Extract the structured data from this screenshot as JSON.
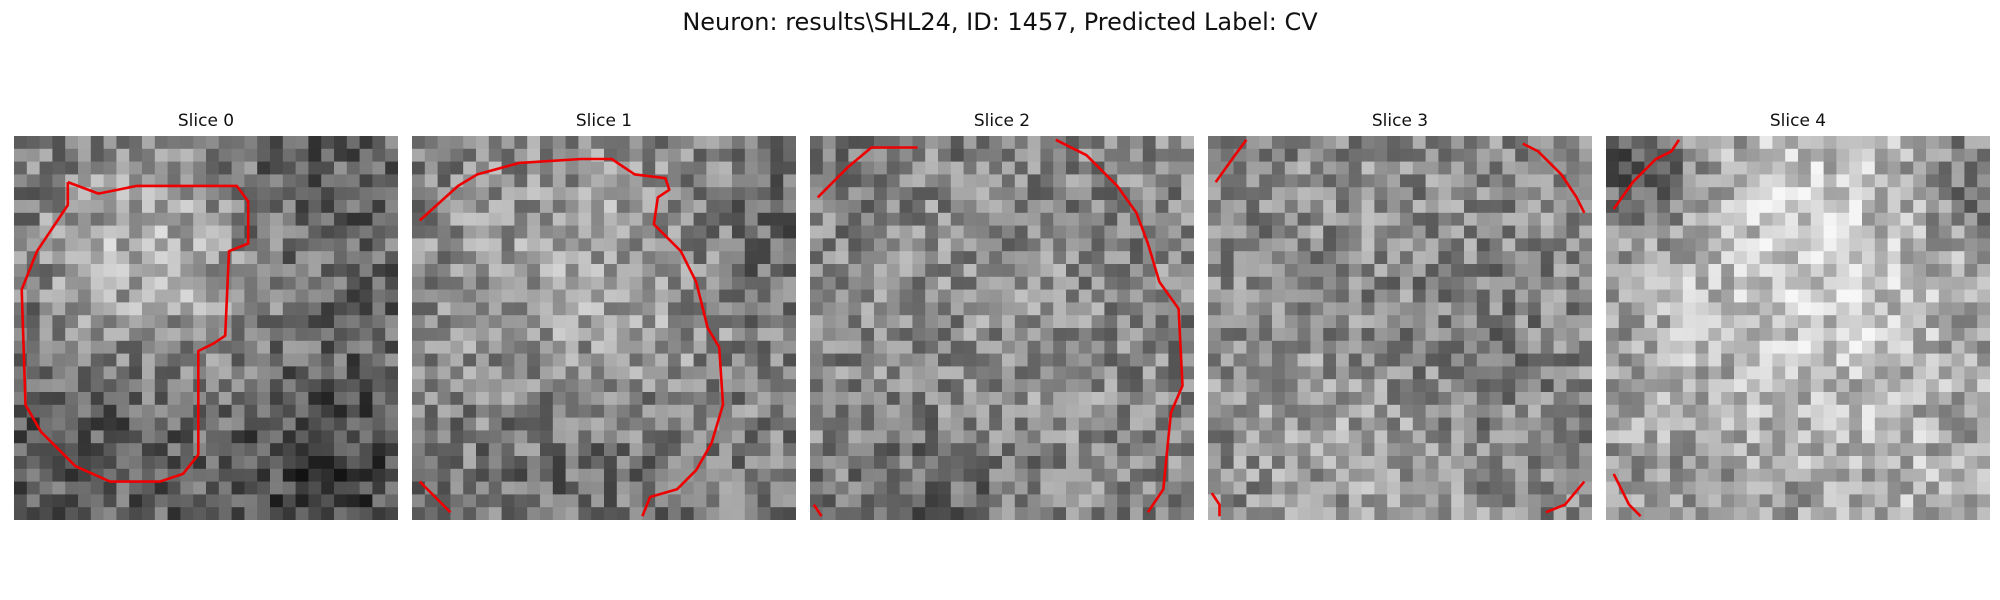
{
  "figure": {
    "title": "Neuron: results\\SHL24, ID: 1457, Predicted Label: CV",
    "contour_color": "#ee0000"
  },
  "panels": [
    {
      "title": "Slice 0",
      "seed": 11,
      "base": 0.42,
      "blobs": [
        [
          10,
          9,
          7,
          0.28
        ],
        [
          5,
          22,
          5,
          -0.12
        ],
        [
          24,
          26,
          6,
          -0.15
        ],
        [
          21,
          4,
          4,
          -0.1
        ]
      ],
      "contours": [
        [
          [
            0.14,
            0.12
          ],
          [
            0.22,
            0.15
          ],
          [
            0.32,
            0.13
          ],
          [
            0.58,
            0.13
          ],
          [
            0.61,
            0.17
          ],
          [
            0.61,
            0.28
          ],
          [
            0.56,
            0.3
          ],
          [
            0.55,
            0.52
          ],
          [
            0.52,
            0.54
          ],
          [
            0.48,
            0.56
          ],
          [
            0.48,
            0.83
          ],
          [
            0.44,
            0.88
          ],
          [
            0.38,
            0.9
          ],
          [
            0.25,
            0.9
          ],
          [
            0.16,
            0.86
          ],
          [
            0.07,
            0.77
          ],
          [
            0.03,
            0.7
          ],
          [
            0.02,
            0.4
          ],
          [
            0.06,
            0.3
          ],
          [
            0.14,
            0.18
          ],
          [
            0.14,
            0.12
          ]
        ]
      ]
    },
    {
      "title": "Slice 1",
      "seed": 23,
      "base": 0.48,
      "blobs": [
        [
          13,
          12,
          9,
          0.18
        ],
        [
          12,
          24,
          6,
          -0.1
        ],
        [
          27,
          8,
          4,
          -0.1
        ]
      ],
      "contours": [
        [
          [
            0.02,
            0.22
          ],
          [
            0.12,
            0.13
          ],
          [
            0.17,
            0.1
          ],
          [
            0.28,
            0.07
          ],
          [
            0.44,
            0.06
          ],
          [
            0.52,
            0.06
          ],
          [
            0.58,
            0.1
          ],
          [
            0.66,
            0.11
          ],
          [
            0.67,
            0.14
          ],
          [
            0.64,
            0.16
          ],
          [
            0.63,
            0.23
          ],
          [
            0.7,
            0.3
          ],
          [
            0.74,
            0.38
          ],
          [
            0.77,
            0.5
          ],
          [
            0.8,
            0.55
          ],
          [
            0.81,
            0.7
          ],
          [
            0.78,
            0.8
          ],
          [
            0.74,
            0.87
          ],
          [
            0.69,
            0.92
          ],
          [
            0.62,
            0.94
          ],
          [
            0.6,
            0.99
          ]
        ],
        [
          [
            0.02,
            0.9
          ],
          [
            0.1,
            0.98
          ]
        ]
      ]
    },
    {
      "title": "Slice 2",
      "seed": 37,
      "base": 0.5,
      "blobs": [
        [
          15,
          15,
          10,
          0.06
        ],
        [
          10,
          28,
          4,
          -0.12
        ]
      ],
      "contours": [
        [
          [
            0.02,
            0.16
          ],
          [
            0.1,
            0.08
          ],
          [
            0.16,
            0.03
          ],
          [
            0.28,
            0.03
          ]
        ],
        [
          [
            0.64,
            0.01
          ],
          [
            0.72,
            0.05
          ],
          [
            0.8,
            0.13
          ],
          [
            0.85,
            0.2
          ],
          [
            0.88,
            0.28
          ],
          [
            0.91,
            0.38
          ],
          [
            0.96,
            0.45
          ],
          [
            0.97,
            0.65
          ],
          [
            0.94,
            0.72
          ],
          [
            0.93,
            0.82
          ],
          [
            0.92,
            0.92
          ],
          [
            0.88,
            0.98
          ]
        ],
        [
          [
            0.01,
            0.96
          ],
          [
            0.03,
            0.99
          ]
        ]
      ]
    },
    {
      "title": "Slice 3",
      "seed": 53,
      "base": 0.55,
      "blobs": [
        [
          12,
          24,
          6,
          0.08
        ],
        [
          20,
          16,
          5,
          -0.08
        ]
      ],
      "contours": [
        [
          [
            0.02,
            0.12
          ],
          [
            0.07,
            0.05
          ],
          [
            0.1,
            0.01
          ]
        ],
        [
          [
            0.82,
            0.02
          ],
          [
            0.86,
            0.04
          ],
          [
            0.92,
            0.1
          ],
          [
            0.96,
            0.16
          ],
          [
            0.98,
            0.2
          ]
        ],
        [
          [
            0.01,
            0.93
          ],
          [
            0.03,
            0.96
          ],
          [
            0.03,
            0.99
          ]
        ],
        [
          [
            0.88,
            0.98
          ],
          [
            0.93,
            0.96
          ],
          [
            0.98,
            0.9
          ]
        ]
      ]
    },
    {
      "title": "Slice 4",
      "seed": 71,
      "base": 0.58,
      "blobs": [
        [
          15,
          8,
          9,
          0.22
        ],
        [
          14,
          20,
          9,
          0.05
        ],
        [
          24,
          26,
          5,
          0.08
        ],
        [
          2,
          2,
          4,
          -0.25
        ],
        [
          28,
          3,
          3,
          -0.2
        ]
      ],
      "contours": [
        [
          [
            0.02,
            0.19
          ],
          [
            0.07,
            0.12
          ],
          [
            0.13,
            0.06
          ],
          [
            0.17,
            0.04
          ],
          [
            0.19,
            0.01
          ]
        ],
        [
          [
            0.02,
            0.88
          ],
          [
            0.04,
            0.92
          ],
          [
            0.06,
            0.96
          ],
          [
            0.09,
            0.99
          ]
        ]
      ]
    }
  ]
}
